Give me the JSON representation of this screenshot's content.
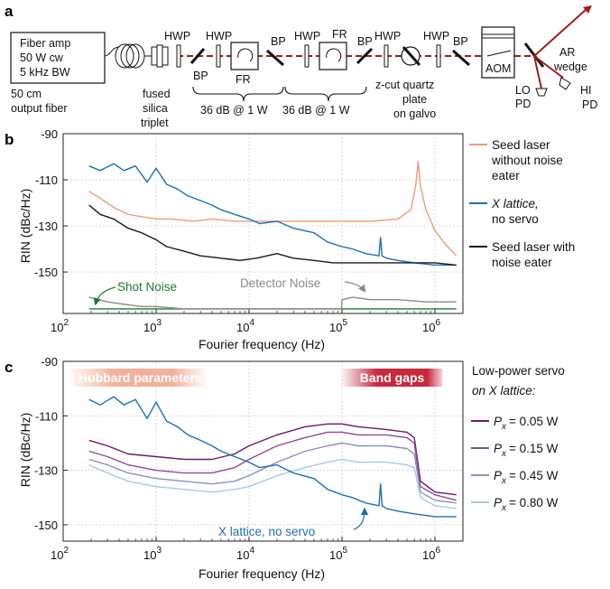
{
  "panel_labels": {
    "a": "a",
    "b": "b",
    "c": "c"
  },
  "diagram": {
    "fiber_amp_lines": [
      "Fiber amp",
      "50 W cw",
      "5 kHz BW"
    ],
    "fiber_caption": [
      "50 cm",
      "output fiber"
    ],
    "fused_caption": [
      "fused",
      "silica",
      "triplet"
    ],
    "hwp": "HWP",
    "bp": "BP",
    "fr": "FR",
    "isolator_caption": "36 dB @ 1 W",
    "quartz_caption": [
      "z-cut quartz",
      "plate",
      "on galvo"
    ],
    "aom": "AOM",
    "ar_wedge": [
      "AR",
      "wedge"
    ],
    "lo_pd": [
      "LO",
      "PD"
    ],
    "hi_pd": [
      "HI",
      "PD"
    ]
  },
  "chart_data": [
    {
      "type": "line",
      "panel": "b",
      "xlabel": "Fourier frequency (Hz)",
      "ylabel": "RIN (dBc/Hz)",
      "xscale": "log",
      "xlim": [
        100,
        2000000
      ],
      "ylim": [
        -168,
        -90
      ],
      "yticks": [
        -90,
        -110,
        -130,
        -150
      ],
      "xticks": [
        {
          "value": 100,
          "base": "10",
          "exp": "2"
        },
        {
          "value": 1000,
          "base": "10",
          "exp": "3"
        },
        {
          "value": 10000,
          "base": "10",
          "exp": "4"
        },
        {
          "value": 100000,
          "base": "10",
          "exp": "5"
        },
        {
          "value": 1000000,
          "base": "10",
          "exp": "6"
        }
      ],
      "grid": true,
      "legend_position": "right",
      "series": [
        {
          "name": "Seed laser without noise eater",
          "legend_lines": [
            "Seed laser",
            "without noise",
            "eater"
          ],
          "color": "#f0997a",
          "x": [
            190,
            250,
            350,
            500,
            700,
            1000,
            1500,
            2500,
            4000,
            7000,
            10000,
            20000,
            50000,
            100000,
            200000,
            400000,
            550000,
            620000,
            660000,
            700000,
            800000,
            1000000,
            1300000,
            1700000
          ],
          "y": [
            -115,
            -118,
            -122,
            -125,
            -126,
            -127,
            -127,
            -128,
            -127,
            -128,
            -128,
            -128,
            -128,
            -128,
            -128,
            -127,
            -123,
            -113,
            -102,
            -113,
            -123,
            -132,
            -138,
            -143
          ]
        },
        {
          "name": "X lattice, no servo",
          "legend_lines": [
            "X lattice,",
            "no servo"
          ],
          "color": "#1c6fb4",
          "x": [
            190,
            250,
            350,
            450,
            600,
            800,
            1000,
            1300,
            1700,
            2200,
            3000,
            4000,
            5000,
            7000,
            10000,
            13000,
            20000,
            30000,
            50000,
            70000,
            100000,
            130000,
            180000,
            250000,
            260000,
            270000,
            300000,
            400000,
            600000,
            1000000,
            1700000
          ],
          "y": [
            -104,
            -106,
            -103,
            -106,
            -104,
            -111,
            -105,
            -112,
            -114,
            -117,
            -119,
            -121,
            -123,
            -125,
            -127,
            -129,
            -128,
            -131,
            -133,
            -137,
            -139,
            -140,
            -142,
            -143,
            -135,
            -143,
            -144,
            -145,
            -146,
            -147,
            -147
          ]
        },
        {
          "name": "Seed laser with noise eater",
          "legend_lines": [
            "Seed laser with",
            "noise eater"
          ],
          "color": "#1a1a1a",
          "x": [
            190,
            250,
            350,
            500,
            700,
            1000,
            1300,
            2000,
            3000,
            5000,
            8000,
            12000,
            20000,
            30000,
            50000,
            80000,
            100000,
            200000,
            500000,
            1000000,
            1700000
          ],
          "y": [
            -121,
            -125,
            -127,
            -131,
            -133,
            -136,
            -139,
            -141,
            -143,
            -144,
            -145,
            -144,
            -142,
            -144,
            -145,
            -146,
            -146,
            -146,
            -146,
            -146,
            -147
          ]
        },
        {
          "name": "Shot Noise",
          "color": "#1e7a34",
          "x": [
            190,
            1700000
          ],
          "y": [
            -166,
            -166
          ]
        },
        {
          "name": "Detector Noise",
          "color": "#8a8a8a",
          "x": [
            190,
            300,
            450,
            700,
            1000,
            2000,
            5000,
            10000,
            30000,
            60000,
            99000,
            100000,
            130000,
            200000,
            400000,
            800000,
            1700000
          ],
          "y": [
            -161,
            -163,
            -164,
            -165,
            -165,
            -166,
            -166,
            -166,
            -166,
            -166,
            -166,
            -162,
            -161,
            -162,
            -162,
            -163,
            -163
          ]
        }
      ],
      "annotations": [
        {
          "text": "Shot Noise",
          "color": "#1e7a34"
        },
        {
          "text": "Detector Noise",
          "color": "#8a8a8a"
        }
      ]
    },
    {
      "type": "line",
      "panel": "c",
      "xlabel": "Fourier frequency (Hz)",
      "ylabel": "RIN (dBc/Hz)",
      "xscale": "log",
      "xlim": [
        100,
        2000000
      ],
      "ylim": [
        -156,
        -90
      ],
      "yticks": [
        -90,
        -110,
        -130,
        -150
      ],
      "xticks": [
        {
          "value": 100,
          "base": "10",
          "exp": "2"
        },
        {
          "value": 1000,
          "base": "10",
          "exp": "3"
        },
        {
          "value": 10000,
          "base": "10",
          "exp": "4"
        },
        {
          "value": 100000,
          "base": "10",
          "exp": "5"
        },
        {
          "value": 1000000,
          "base": "10",
          "exp": "6"
        }
      ],
      "grid": true,
      "legend_title": [
        "Low-power servo",
        "on X lattice:"
      ],
      "legend_position": "right",
      "series": [
        {
          "name": "P_x = 0.05 W",
          "var": "P",
          "sub": "x",
          "value": "= 0.05 W",
          "color": "#6a1b6e",
          "x": [
            190,
            300,
            500,
            1000,
            2000,
            4000,
            7000,
            10000,
            20000,
            40000,
            70000,
            100000,
            150000,
            300000,
            500000,
            600000,
            700000,
            1000000,
            1700000
          ],
          "y": [
            -119,
            -121,
            -124,
            -125,
            -126,
            -126,
            -124,
            -121,
            -117,
            -114,
            -113,
            -113,
            -114,
            -115,
            -116,
            -118,
            -134,
            -138,
            -139
          ]
        },
        {
          "name": "P_x = 0.15 W",
          "var": "P",
          "sub": "x",
          "value": "= 0.15 W",
          "color": "#8c4a9c",
          "x": [
            190,
            300,
            500,
            1000,
            2000,
            4000,
            7000,
            10000,
            20000,
            40000,
            70000,
            100000,
            150000,
            300000,
            500000,
            600000,
            700000,
            1000000,
            1700000
          ],
          "y": [
            -123,
            -125,
            -128,
            -130,
            -131,
            -131,
            -129,
            -126,
            -121,
            -118,
            -116,
            -116,
            -117,
            -117,
            -118,
            -120,
            -136,
            -139,
            -141
          ]
        },
        {
          "name": "P_x = 0.45 W",
          "var": "P",
          "sub": "x",
          "value": "= 0.45 W",
          "color": "#8a90bd",
          "x": [
            190,
            300,
            500,
            1000,
            2000,
            4000,
            7000,
            10000,
            20000,
            40000,
            70000,
            100000,
            150000,
            300000,
            500000,
            600000,
            700000,
            1000000,
            1700000
          ],
          "y": [
            -126,
            -128,
            -131,
            -133,
            -134,
            -135,
            -134,
            -132,
            -127,
            -123,
            -121,
            -120,
            -121,
            -121,
            -122,
            -124,
            -138,
            -141,
            -142
          ]
        },
        {
          "name": "P_x = 0.80 W",
          "var": "P",
          "sub": "x",
          "value": "= 0.80 W",
          "color": "#aac8e4",
          "x": [
            190,
            300,
            500,
            1000,
            2000,
            4000,
            7000,
            10000,
            20000,
            40000,
            70000,
            100000,
            150000,
            300000,
            500000,
            600000,
            700000,
            1000000,
            1700000
          ],
          "y": [
            -128,
            -131,
            -134,
            -136,
            -137,
            -138,
            -137,
            -136,
            -132,
            -129,
            -127,
            -126,
            -127,
            -127,
            -128,
            -129,
            -140,
            -143,
            -144
          ]
        },
        {
          "name": "X lattice, no servo",
          "color": "#1c6fb4",
          "x": [
            190,
            250,
            350,
            450,
            600,
            800,
            1000,
            1300,
            1700,
            2200,
            3000,
            4000,
            5000,
            7000,
            10000,
            13000,
            20000,
            30000,
            50000,
            70000,
            100000,
            130000,
            180000,
            250000,
            260000,
            270000,
            300000,
            400000,
            600000,
            1000000,
            1700000
          ],
          "y": [
            -104,
            -106,
            -103,
            -106,
            -104,
            -111,
            -105,
            -112,
            -114,
            -117,
            -119,
            -121,
            -123,
            -125,
            -127,
            -129,
            -128,
            -131,
            -133,
            -137,
            -139,
            -140,
            -142,
            -143,
            -135,
            -143,
            -144,
            -145,
            -146,
            -147,
            -147
          ]
        }
      ],
      "annotations": [
        {
          "text": "X lattice, no servo",
          "color": "#1c6fb4"
        }
      ],
      "bands": [
        {
          "label": "Hubbard parameters",
          "color": "#f2b7a3",
          "x": [
            130,
            3500
          ]
        },
        {
          "label": "Band gaps",
          "color": "#c8283e",
          "x": [
            100000,
            1200000
          ]
        }
      ]
    }
  ]
}
